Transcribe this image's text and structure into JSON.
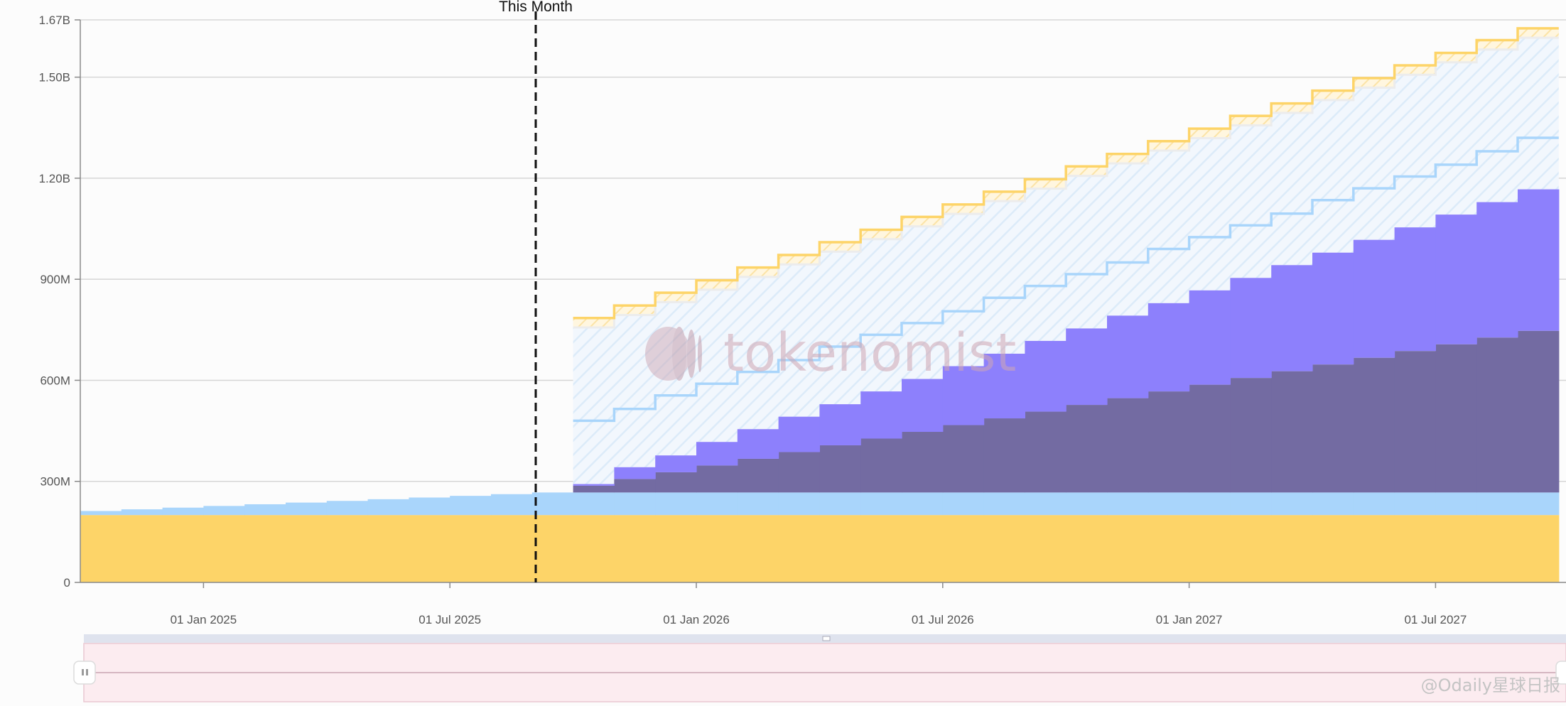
{
  "chart_data": {
    "type": "area",
    "title": "",
    "xlabel": "",
    "ylabel": "",
    "x_start": "2024-10",
    "x_end": "2027-10",
    "x_ticks": [
      "01 Jan 2025",
      "01 Jul 2025",
      "01 Jan 2026",
      "01 Jul 2026",
      "01 Jan 2027",
      "01 Jul 2027"
    ],
    "y_ticks": [
      "0",
      "300M",
      "600M",
      "900M",
      "1.20B",
      "1.50B",
      "1.67B"
    ],
    "ylim": [
      0,
      1670000000
    ],
    "grid": true,
    "marker": {
      "label": "This Month",
      "x": "2025-08"
    },
    "unlocked_series": [
      {
        "name": "",
        "color": "#fdd468",
        "x": [
          "2024-10",
          "2024-11",
          "2024-12",
          "2025-01",
          "2025-02",
          "2025-03",
          "2025-04",
          "2025-05",
          "2025-06",
          "2025-07",
          "2025-08",
          "2025-09",
          "2025-10",
          "2025-11",
          "2025-12",
          "2026-01",
          "2026-02",
          "2026-03",
          "2026-04",
          "2026-05",
          "2026-06",
          "2026-07",
          "2026-08",
          "2026-09",
          "2026-10",
          "2026-11",
          "2026-12",
          "2027-01",
          "2027-02",
          "2027-03",
          "2027-04",
          "2027-05",
          "2027-06",
          "2027-07",
          "2027-08",
          "2027-09"
        ],
        "values": [
          200000000,
          200000000,
          200000000,
          200000000,
          200000000,
          200000000,
          200000000,
          200000000,
          200000000,
          200000000,
          200000000,
          200000000,
          200000000,
          200000000,
          200000000,
          200000000,
          200000000,
          200000000,
          200000000,
          200000000,
          200000000,
          200000000,
          200000000,
          200000000,
          200000000,
          200000000,
          200000000,
          200000000,
          200000000,
          200000000,
          200000000,
          200000000,
          200000000,
          200000000,
          200000000,
          200000000
        ]
      },
      {
        "name": "",
        "color": "#a9d5fb",
        "x": [
          "2024-10",
          "2024-11",
          "2024-12",
          "2025-01",
          "2025-02",
          "2025-03",
          "2025-04",
          "2025-05",
          "2025-06",
          "2025-07",
          "2025-08",
          "2025-09",
          "2025-10",
          "2025-11",
          "2025-12",
          "2026-01",
          "2026-02",
          "2026-03",
          "2026-04",
          "2026-05",
          "2026-06",
          "2026-07",
          "2026-08",
          "2026-09",
          "2026-10",
          "2026-11",
          "2026-12",
          "2027-01",
          "2027-02",
          "2027-03",
          "2027-04",
          "2027-05",
          "2027-06",
          "2027-07",
          "2027-08",
          "2027-09"
        ],
        "values": [
          12000000,
          17000000,
          22000000,
          27000000,
          32000000,
          37000000,
          42000000,
          47000000,
          52000000,
          57000000,
          62000000,
          67000000,
          67000000,
          67000000,
          67000000,
          67000000,
          67000000,
          67000000,
          67000000,
          67000000,
          67000000,
          67000000,
          67000000,
          67000000,
          67000000,
          67000000,
          67000000,
          67000000,
          67000000,
          67000000,
          67000000,
          67000000,
          67000000,
          67000000,
          67000000,
          67000000
        ]
      },
      {
        "name": "",
        "color": "#736ba2",
        "x": [
          "2024-10",
          "2024-11",
          "2024-12",
          "2025-01",
          "2025-02",
          "2025-03",
          "2025-04",
          "2025-05",
          "2025-06",
          "2025-07",
          "2025-08",
          "2025-09",
          "2025-10",
          "2025-11",
          "2025-12",
          "2026-01",
          "2026-02",
          "2026-03",
          "2026-04",
          "2026-05",
          "2026-06",
          "2026-07",
          "2026-08",
          "2026-09",
          "2026-10",
          "2026-11",
          "2026-12",
          "2027-01",
          "2027-02",
          "2027-03",
          "2027-04",
          "2027-05",
          "2027-06",
          "2027-07",
          "2027-08",
          "2027-09"
        ],
        "values": [
          0,
          0,
          0,
          0,
          0,
          0,
          0,
          0,
          0,
          0,
          0,
          0,
          20000000,
          40000000,
          60000000,
          80000000,
          100000000,
          120000000,
          140000000,
          160000000,
          180000000,
          200000000,
          220000000,
          240000000,
          260000000,
          280000000,
          300000000,
          320000000,
          340000000,
          360000000,
          380000000,
          400000000,
          420000000,
          440000000,
          460000000,
          480000000
        ]
      },
      {
        "name": "",
        "color": "#8d80fc",
        "x": [
          "2024-10",
          "2024-11",
          "2024-12",
          "2025-01",
          "2025-02",
          "2025-03",
          "2025-04",
          "2025-05",
          "2025-06",
          "2025-07",
          "2025-08",
          "2025-09",
          "2025-10",
          "2025-11",
          "2025-12",
          "2026-01",
          "2026-02",
          "2026-03",
          "2026-04",
          "2026-05",
          "2026-06",
          "2026-07",
          "2026-08",
          "2026-09",
          "2026-10",
          "2026-11",
          "2026-12",
          "2027-01",
          "2027-02",
          "2027-03",
          "2027-04",
          "2027-05",
          "2027-06",
          "2027-07",
          "2027-08",
          "2027-09"
        ],
        "values": [
          0,
          0,
          0,
          0,
          0,
          0,
          0,
          0,
          0,
          0,
          0,
          0,
          5000000,
          35000000,
          50000000,
          70000000,
          88000000,
          105000000,
          122000000,
          140000000,
          157000000,
          175000000,
          192000000,
          210000000,
          227000000,
          245000000,
          262000000,
          280000000,
          297000000,
          315000000,
          332000000,
          350000000,
          367000000,
          385000000,
          402000000,
          420000000
        ]
      }
    ],
    "projected_series": [
      {
        "name": "",
        "color": "#a9d5fb",
        "x_start": "2025-10",
        "values": [
          480000000,
          515000000,
          555000000,
          590000000,
          625000000,
          660000000,
          700000000,
          735000000,
          770000000,
          805000000,
          845000000,
          880000000,
          915000000,
          950000000,
          990000000,
          1025000000,
          1060000000,
          1095000000,
          1135000000,
          1170000000,
          1205000000,
          1240000000,
          1280000000,
          1320000000
        ]
      },
      {
        "name": "",
        "color": "#fdd468",
        "x_start": "2025-10",
        "values": [
          785000000,
          822000000,
          860000000,
          897000000,
          935000000,
          972000000,
          1010000000,
          1047000000,
          1085000000,
          1122000000,
          1160000000,
          1197000000,
          1235000000,
          1272000000,
          1310000000,
          1347000000,
          1385000000,
          1422000000,
          1460000000,
          1497000000,
          1535000000,
          1572000000,
          1610000000,
          1645000000
        ]
      }
    ],
    "watermark": "tokenomist",
    "credit": "@Odaily星球日报"
  }
}
